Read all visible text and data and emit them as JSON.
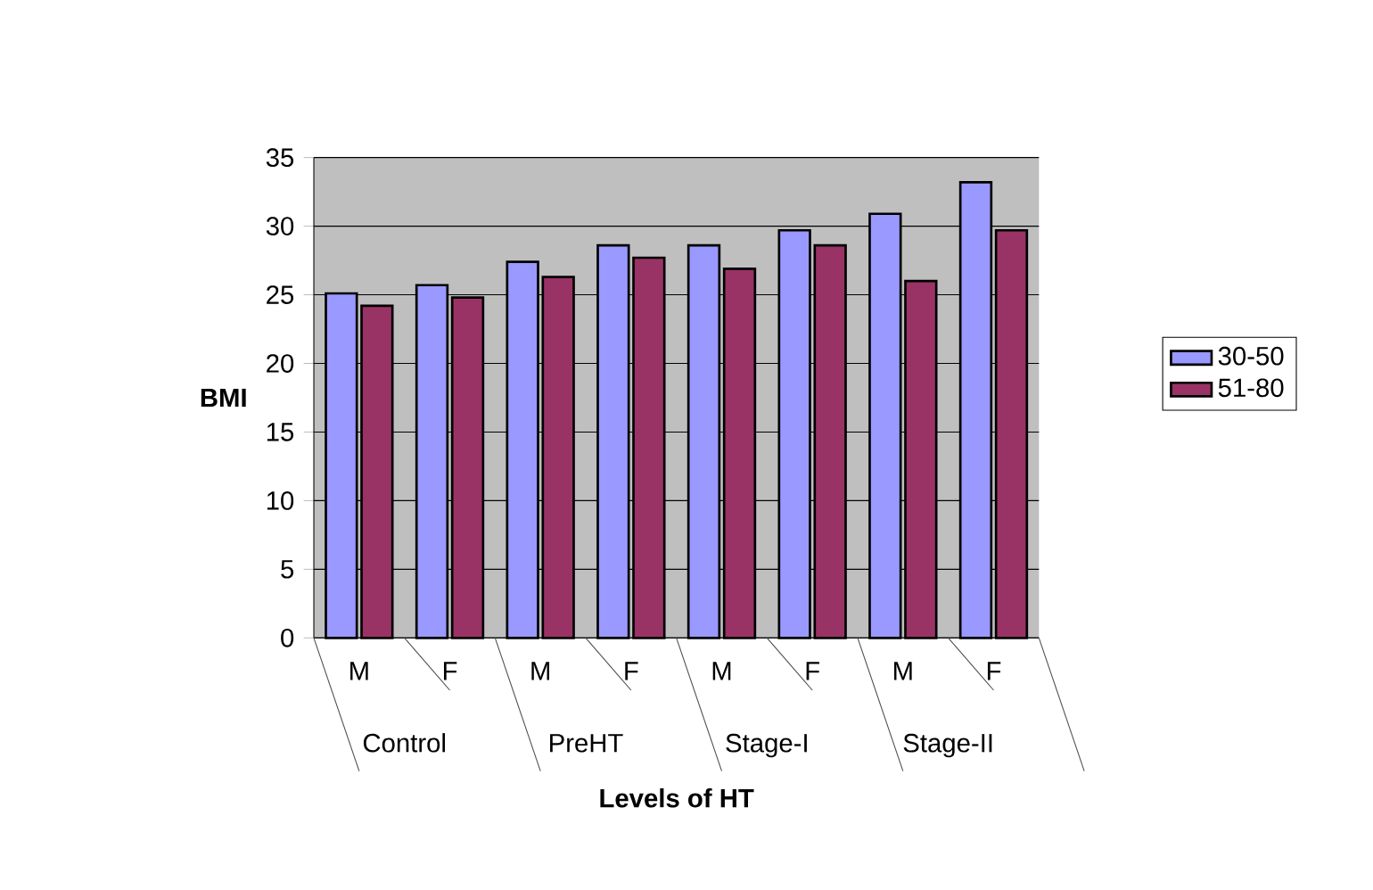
{
  "chart_data": {
    "type": "bar",
    "xlabel": "Levels of HT",
    "ylabel": "BMI",
    "categories": [
      "M",
      "F",
      "M",
      "F",
      "M",
      "F",
      "M",
      "F"
    ],
    "annotations": [
      "Control",
      "PreHT",
      "Stage-I",
      "Stage-II"
    ],
    "series": [
      {
        "name": "30-50",
        "color": "#9999ff",
        "values": [
          25.1,
          25.7,
          27.4,
          28.6,
          28.6,
          29.7,
          30.9,
          33.2
        ]
      },
      {
        "name": "51-80",
        "color": "#993366",
        "values": [
          24.2,
          24.8,
          26.3,
          27.7,
          26.9,
          28.6,
          26.0,
          29.7
        ]
      }
    ],
    "ylim": [
      0,
      35
    ],
    "yticks": [
      0,
      5,
      10,
      15,
      20,
      25,
      30,
      35
    ],
    "grid": "y",
    "legend": "right"
  }
}
